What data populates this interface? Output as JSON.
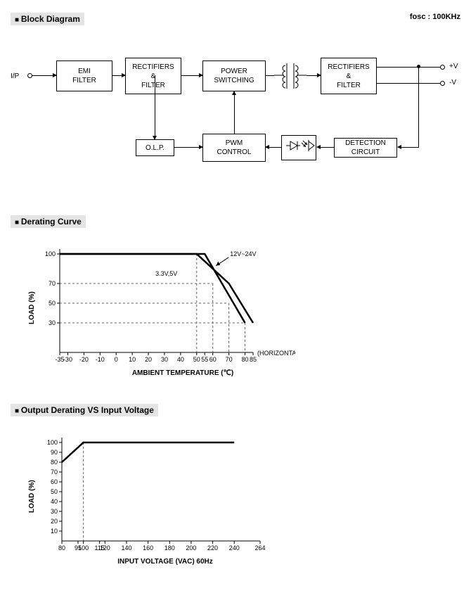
{
  "sections": {
    "block_diagram": "Block Diagram",
    "derating_curve": "Derating Curve",
    "output_derating": "Output Derating VS Input Voltage"
  },
  "fosc_label": "fosc : 100KHz",
  "block_diagram": {
    "ip_label": "I/P",
    "plusV": "+V",
    "minusV": "-V",
    "boxes": {
      "emi": "EMI\nFILTER",
      "rect1": "RECTIFIERS\n&\nFILTER",
      "power": "POWER\nSWITCHING",
      "rect2": "RECTIFIERS\n&\nFILTER",
      "olp": "O.L.P.",
      "pwm": "PWM\nCONTROL",
      "detect": "DETECTION\nCIRCUIT"
    }
  },
  "derating_curve": {
    "type": "line",
    "xlabel": "AMBIENT TEMPERATURE (℃)",
    "ylabel": "LOAD (%)",
    "horizontal_label": "(HORIZONTAL)",
    "annotation1": "12V~24V",
    "annotation2": "3.3V,5V",
    "xlim": [
      -35,
      85
    ],
    "ylim": [
      0,
      105
    ],
    "x_ticks": [
      -35,
      -30,
      -20,
      -10,
      0,
      10,
      20,
      30,
      40,
      50,
      55,
      60,
      70,
      80,
      85
    ],
    "y_ticks": [
      30,
      50,
      70,
      100
    ],
    "y_dash": [
      30,
      50,
      70,
      100
    ],
    "x_dash_to": [
      80,
      70,
      60,
      50
    ],
    "series1": {
      "x": [
        -35,
        55,
        80
      ],
      "y": [
        100,
        100,
        30
      ]
    },
    "series2": {
      "x": [
        -35,
        50,
        70,
        85
      ],
      "y": [
        100,
        100,
        70,
        30
      ]
    },
    "line_color": "#000000",
    "line_width": 2.5,
    "dash_color": "#666666",
    "axis_color": "#000000",
    "font_size": 9
  },
  "output_derating": {
    "type": "line",
    "xlabel": "INPUT VOLTAGE (VAC) 60Hz",
    "ylabel": "LOAD (%)",
    "xlim": [
      80,
      264
    ],
    "ylim": [
      0,
      105
    ],
    "x_ticks": [
      80,
      95,
      100,
      115,
      120,
      140,
      160,
      180,
      200,
      220,
      240,
      264
    ],
    "y_ticks": [
      10,
      20,
      30,
      40,
      50,
      60,
      70,
      80,
      90,
      100
    ],
    "series": {
      "x": [
        80,
        100,
        240
      ],
      "y": [
        80,
        100,
        100
      ]
    },
    "x_dash": 100,
    "line_color": "#000000",
    "line_width": 2.5,
    "dash_color": "#666666",
    "axis_color": "#000000",
    "font_size": 9
  }
}
